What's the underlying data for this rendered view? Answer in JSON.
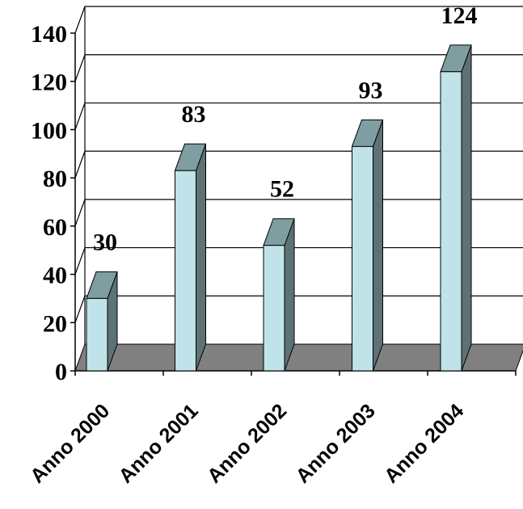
{
  "chart_data": {
    "type": "bar",
    "style": "3d-column",
    "categories": [
      "Anno 2000",
      "Anno 2001",
      "Anno 2002",
      "Anno 2003",
      "Anno 2004"
    ],
    "values": [
      30,
      83,
      52,
      93,
      124
    ],
    "data_labels": [
      "30",
      "83",
      "52",
      "93",
      "124"
    ],
    "ylim": [
      0,
      140
    ],
    "yticks": [
      "0",
      "20",
      "40",
      "60",
      "80",
      "100",
      "120",
      "140"
    ],
    "grid": true,
    "legend": "none",
    "colors": {
      "bar_front": "#bfe3e8",
      "bar_top": "#7f9ea2",
      "bar_side": "#5e7275",
      "floor": "#808080",
      "grid": "#000000"
    }
  }
}
